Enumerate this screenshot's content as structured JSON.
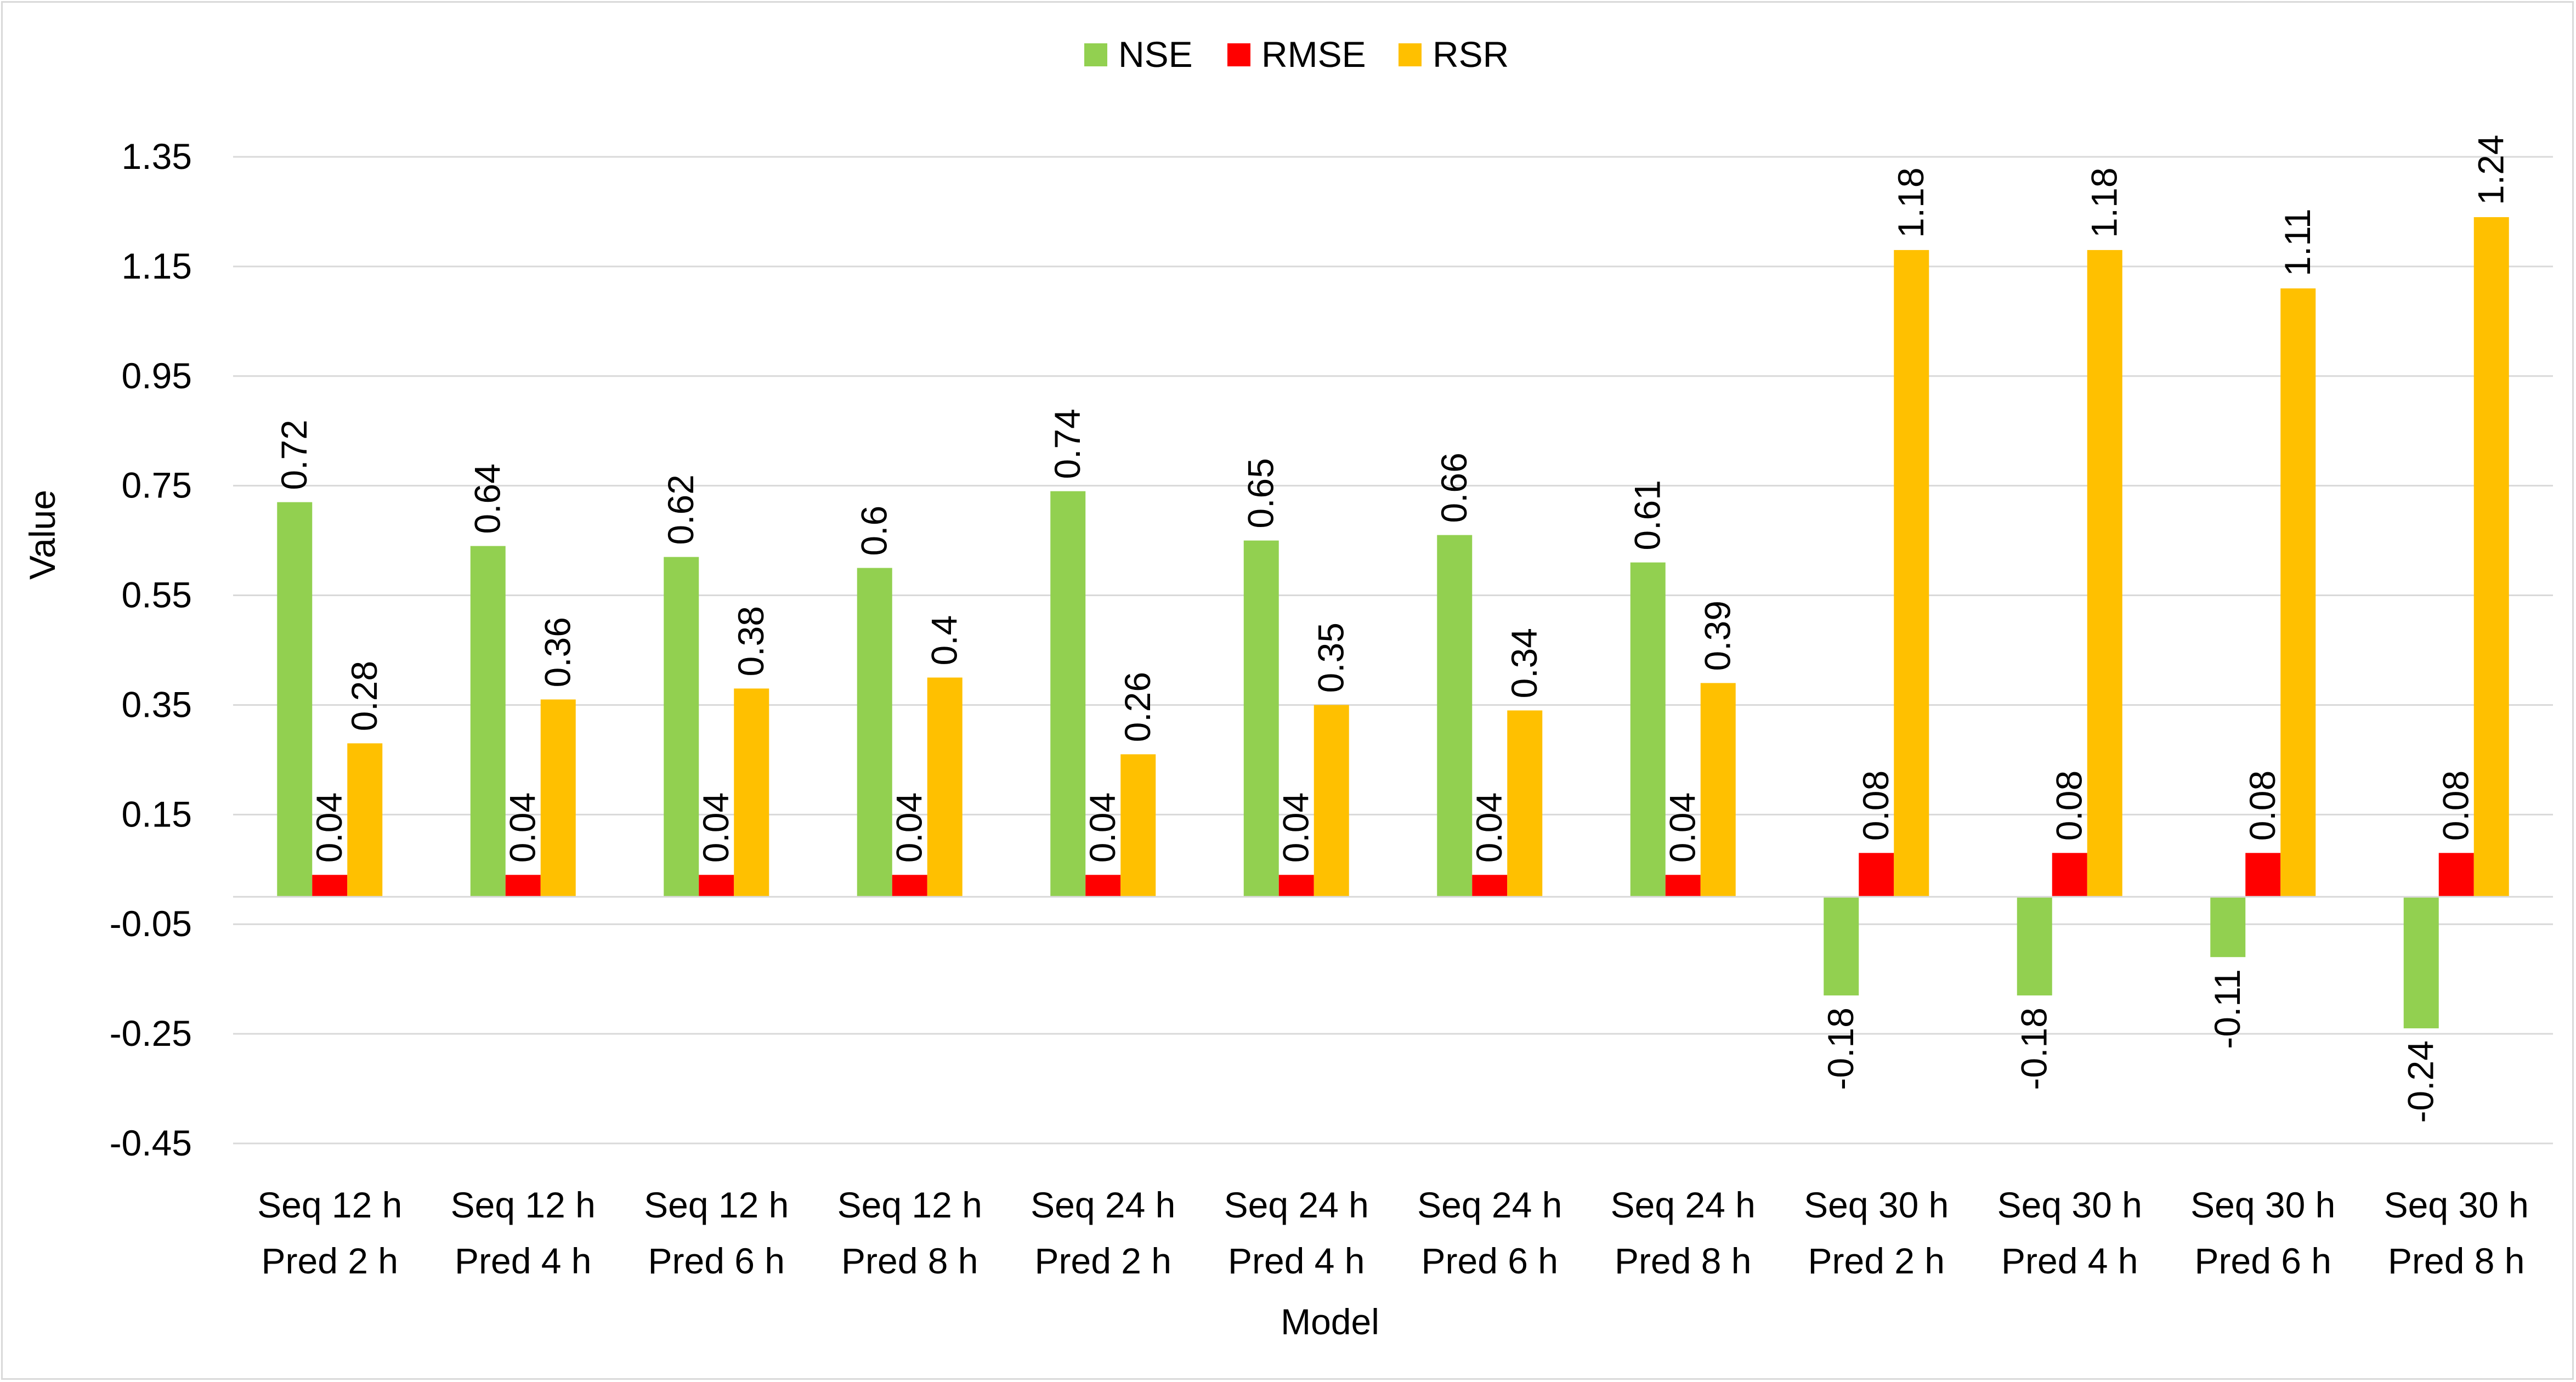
{
  "chart_data": {
    "type": "bar",
    "title": "",
    "xlabel": "Model",
    "ylabel": "Value",
    "ylim": [
      -0.45,
      1.35
    ],
    "yticks": [
      "1.35",
      "1.15",
      "0.95",
      "0.75",
      "0.55",
      "0.35",
      "0.15",
      "-0.05",
      "-0.25",
      "-0.45"
    ],
    "grid": "horizontal",
    "legend_position": "top-center",
    "categories": [
      [
        "Seq 12 h",
        "Pred 2 h"
      ],
      [
        "Seq 12 h",
        "Pred 4 h"
      ],
      [
        "Seq 12 h",
        "Pred 6 h"
      ],
      [
        "Seq 12 h",
        "Pred 8 h"
      ],
      [
        "Seq 24 h",
        "Pred 2 h"
      ],
      [
        "Seq 24 h",
        "Pred 4 h"
      ],
      [
        "Seq 24 h",
        "Pred 6 h"
      ],
      [
        "Seq 24 h",
        "Pred 8 h"
      ],
      [
        "Seq 30 h",
        "Pred 2 h"
      ],
      [
        "Seq 30 h",
        "Pred 4 h"
      ],
      [
        "Seq 30 h",
        "Pred 6 h"
      ],
      [
        "Seq 30 h",
        "Pred 8 h"
      ]
    ],
    "series": [
      {
        "name": "NSE",
        "color": "#92d050",
        "values": [
          0.72,
          0.64,
          0.62,
          0.6,
          0.74,
          0.65,
          0.66,
          0.61,
          -0.18,
          -0.18,
          -0.11,
          -0.24
        ],
        "labels": [
          "0.72",
          "0.64",
          "0.62",
          "0.6",
          "0.74",
          "0.65",
          "0.66",
          "0.61",
          "-0.18",
          "-0.18",
          "-0.11",
          "-0.24"
        ]
      },
      {
        "name": "RMSE",
        "color": "#ff0000",
        "values": [
          0.04,
          0.04,
          0.04,
          0.04,
          0.04,
          0.04,
          0.04,
          0.04,
          0.08,
          0.08,
          0.08,
          0.08
        ],
        "labels": [
          "0.04",
          "0.04",
          "0.04",
          "0.04",
          "0.04",
          "0.04",
          "0.04",
          "0.04",
          "0.08",
          "0.08",
          "0.08",
          "0.08"
        ]
      },
      {
        "name": "RSR",
        "color": "#ffc000",
        "values": [
          0.28,
          0.36,
          0.38,
          0.4,
          0.26,
          0.35,
          0.34,
          0.39,
          1.18,
          1.18,
          1.11,
          1.24
        ],
        "labels": [
          "0.28",
          "0.36",
          "0.38",
          "0.4",
          "0.26",
          "0.35",
          "0.34",
          "0.39",
          "1.18",
          "1.18",
          "1.11",
          "1.24"
        ]
      }
    ]
  }
}
